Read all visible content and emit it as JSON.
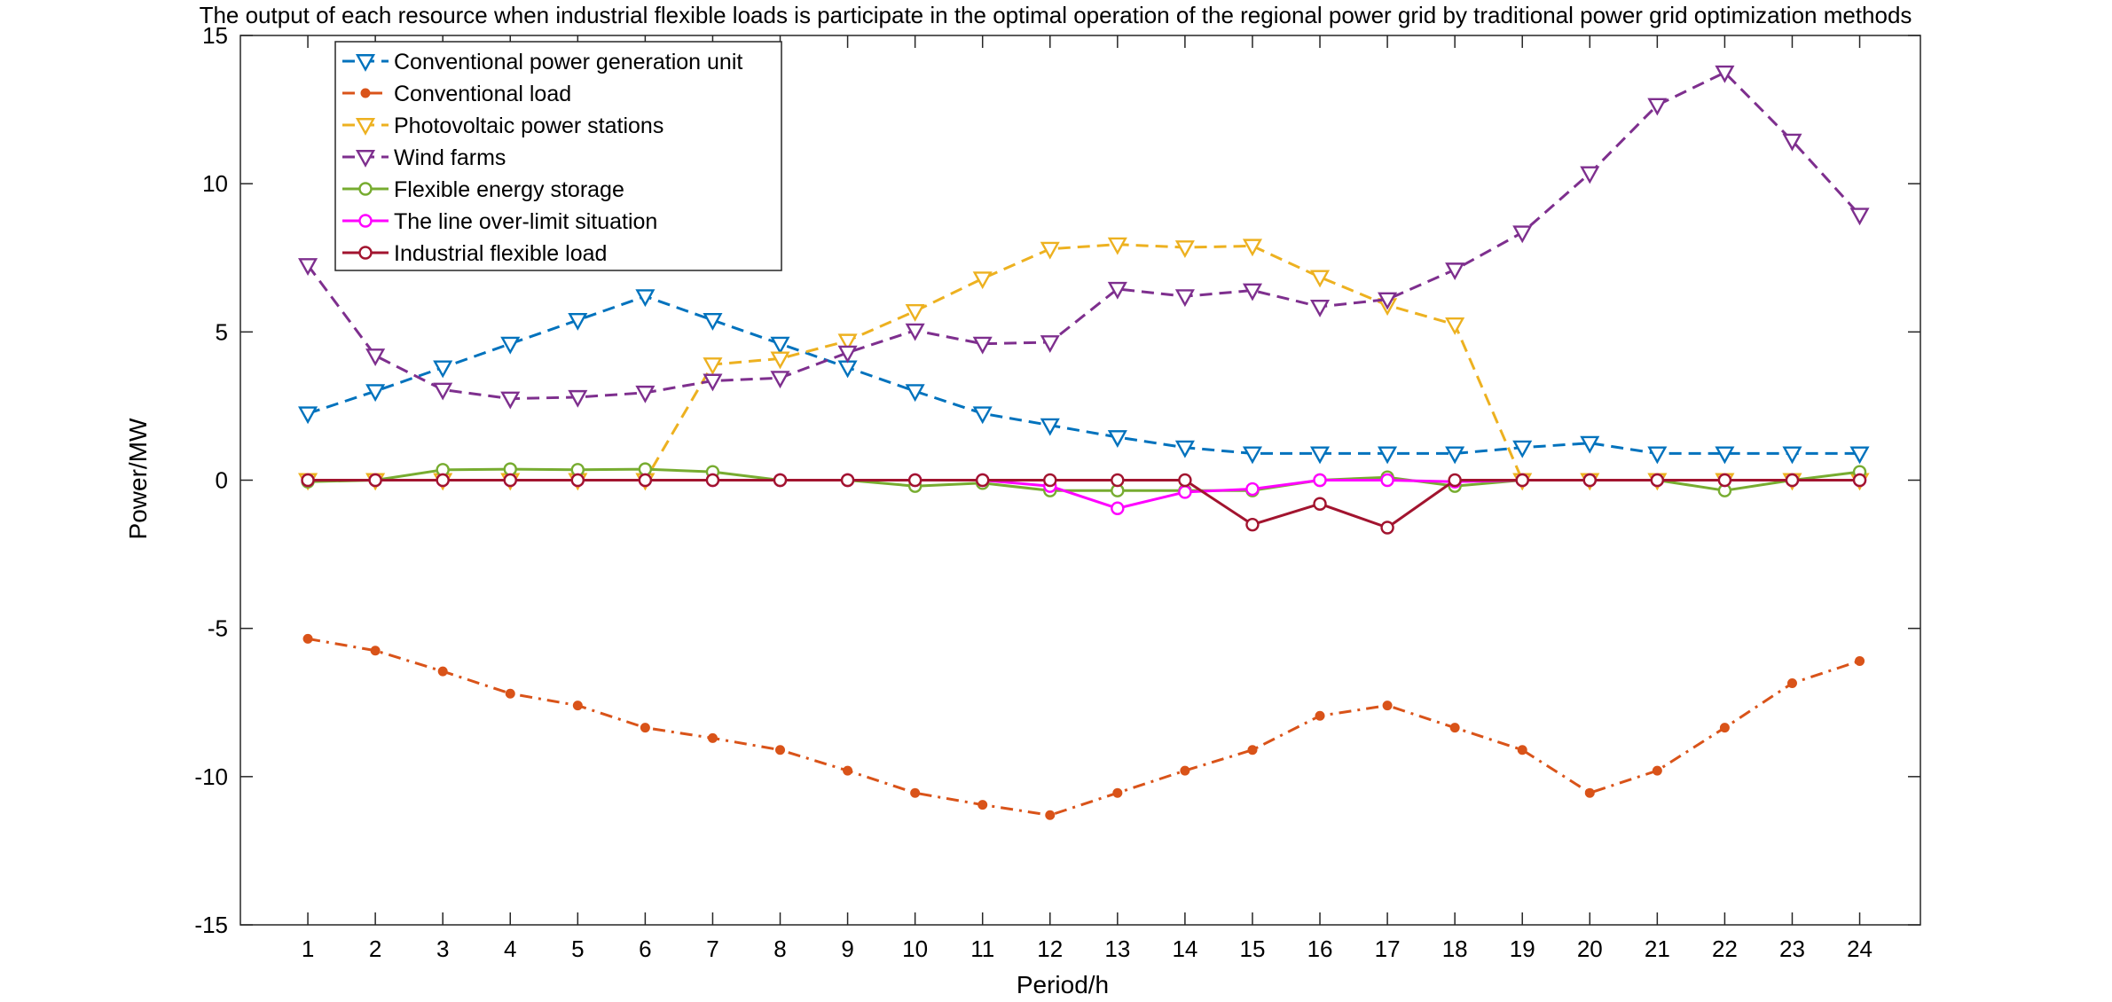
{
  "chart_data": {
    "type": "line",
    "title": "The output of each resource when industrial flexible loads is participate in the optimal operation of the regional power grid by traditional power grid optimization methods",
    "xlabel": "Period/h",
    "ylabel": "Power/MW",
    "xlim": [
      0,
      24.9
    ],
    "ylim": [
      -15,
      15
    ],
    "x": [
      1,
      2,
      3,
      4,
      5,
      6,
      7,
      8,
      9,
      10,
      11,
      12,
      13,
      14,
      15,
      16,
      17,
      18,
      19,
      20,
      21,
      22,
      23,
      24
    ],
    "xticks": [
      "1",
      "2",
      "3",
      "4",
      "5",
      "6",
      "7",
      "8",
      "9",
      "10",
      "11",
      "12",
      "13",
      "14",
      "15",
      "16",
      "17",
      "18",
      "19",
      "20",
      "21",
      "22",
      "23",
      "24"
    ],
    "yticks": [
      "-15",
      "-10",
      "-5",
      "0",
      "5",
      "10",
      "15"
    ],
    "grid": false,
    "legend_position": "top-left",
    "series": [
      {
        "name": "Conventional power generation unit",
        "color": "#0072BD",
        "line_style": "dashed",
        "marker": "triangle-down",
        "values": [
          2.25,
          3.0,
          3.8,
          4.6,
          5.4,
          6.2,
          5.4,
          4.6,
          3.8,
          3.0,
          2.25,
          1.85,
          1.45,
          1.1,
          0.9,
          0.9,
          0.9,
          0.9,
          1.1,
          1.25,
          0.9,
          0.9,
          0.9,
          0.9
        ]
      },
      {
        "name": "Conventional load",
        "color": "#D95319",
        "line_style": "dashdot",
        "marker": "dot",
        "values": [
          -5.35,
          -5.75,
          -6.45,
          -7.2,
          -7.6,
          -8.35,
          -8.7,
          -9.1,
          -9.8,
          -10.55,
          -10.95,
          -11.3,
          -10.55,
          -9.8,
          -9.1,
          -7.95,
          -7.6,
          -8.35,
          -9.1,
          -10.55,
          -9.8,
          -8.35,
          -6.85,
          -6.1
        ]
      },
      {
        "name": "Photovoltaic power stations",
        "color": "#EDB120",
        "line_style": "dashed",
        "marker": "triangle-down",
        "values": [
          0,
          0,
          0,
          0,
          0,
          0,
          3.9,
          4.1,
          4.7,
          5.7,
          6.8,
          7.8,
          7.95,
          7.85,
          7.9,
          6.85,
          5.9,
          5.25,
          0,
          0,
          0,
          0,
          0,
          0
        ]
      },
      {
        "name": "Wind farms",
        "color": "#7E2F8E",
        "line_style": "dashed",
        "marker": "triangle-down",
        "values": [
          7.25,
          4.2,
          3.05,
          2.75,
          2.8,
          2.95,
          3.35,
          3.45,
          4.3,
          5.05,
          4.6,
          4.65,
          6.45,
          6.2,
          6.4,
          5.85,
          6.1,
          7.1,
          8.35,
          10.35,
          12.65,
          13.75,
          11.45,
          8.95
        ]
      },
      {
        "name": "Flexible energy storage",
        "color": "#77AC30",
        "line_style": "solid",
        "marker": "circle",
        "values": [
          -0.05,
          0,
          0.35,
          0.37,
          0.35,
          0.37,
          0.28,
          0,
          0,
          -0.2,
          -0.1,
          -0.35,
          -0.35,
          -0.35,
          -0.35,
          0,
          0.1,
          -0.2,
          0,
          0,
          0,
          -0.35,
          0,
          0.28
        ]
      },
      {
        "name": "The line over-limit situation",
        "color": "#FF00FF",
        "line_style": "solid",
        "marker": "circle",
        "values": [
          0,
          0,
          0,
          0,
          0,
          0,
          0,
          0,
          0,
          0,
          0,
          -0.2,
          -0.95,
          -0.4,
          -0.3,
          0,
          0,
          -0.05,
          0,
          0,
          0,
          0,
          0,
          0
        ]
      },
      {
        "name": "Industrial flexible load",
        "color": "#A2142F",
        "line_style": "solid",
        "marker": "circle",
        "values": [
          0,
          0,
          0,
          0,
          0,
          0,
          0,
          0,
          0,
          0,
          0,
          0,
          0,
          0,
          -1.5,
          -0.8,
          -1.6,
          0,
          0,
          0,
          0,
          0,
          0,
          0
        ]
      }
    ]
  }
}
